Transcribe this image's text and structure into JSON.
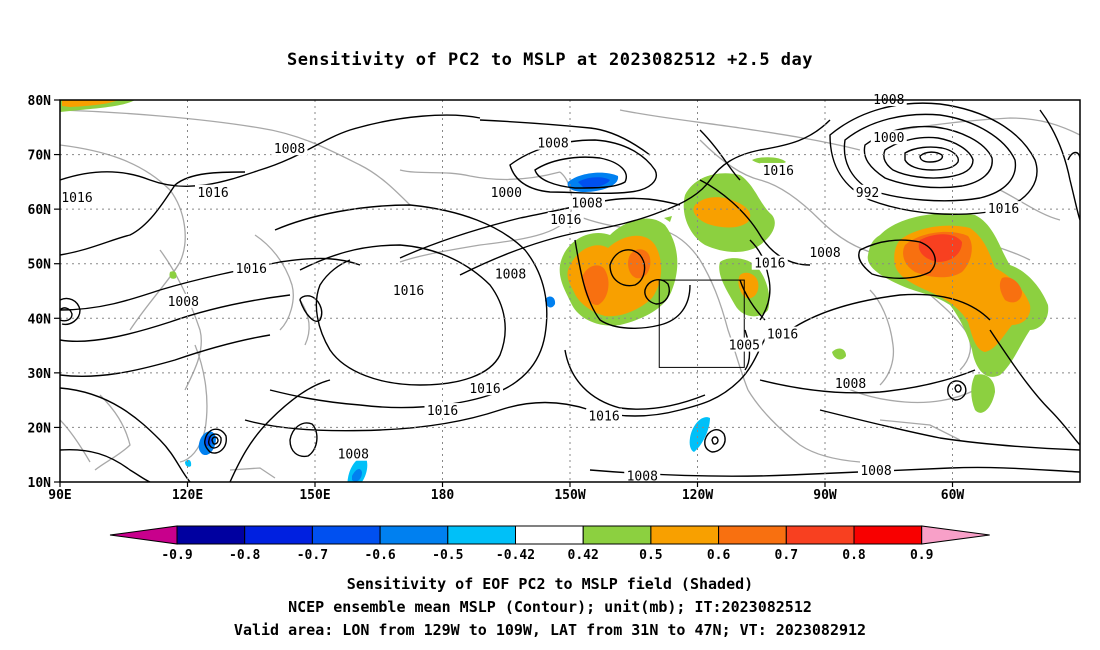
{
  "title": "Sensitivity of PC2 to MSLP at 2023082512 +2.5 day",
  "axes": {
    "lat_labels": [
      "80N",
      "70N",
      "60N",
      "50N",
      "40N",
      "30N",
      "20N",
      "10N"
    ],
    "lon_labels": [
      "90E",
      "120E",
      "150E",
      "180",
      "150W",
      "120W",
      "90W",
      "60W"
    ]
  },
  "contour_labels": [
    {
      "text": "1008",
      "lon": 144,
      "lat": 71
    },
    {
      "text": "1016",
      "lon": 94,
      "lat": 62
    },
    {
      "text": "1016",
      "lon": 126,
      "lat": 63
    },
    {
      "text": "1016",
      "lon": 135,
      "lat": 49
    },
    {
      "text": "1008",
      "lon": 119,
      "lat": 43
    },
    {
      "text": "1016",
      "lon": 172,
      "lat": 45
    },
    {
      "text": "1008",
      "lon": 196,
      "lat": 48
    },
    {
      "text": "1008",
      "lon": 206,
      "lat": 72
    },
    {
      "text": "1000",
      "lon": 195,
      "lat": 63
    },
    {
      "text": "1008",
      "lon": 214,
      "lat": 61
    },
    {
      "text": "1016",
      "lon": 209,
      "lat": 58
    },
    {
      "text": "1016",
      "lon": 259,
      "lat": 67
    },
    {
      "text": "1008",
      "lon": 285,
      "lat": 80
    },
    {
      "text": "1000",
      "lon": 285,
      "lat": 73
    },
    {
      "text": "992",
      "lon": 280,
      "lat": 63
    },
    {
      "text": "1016",
      "lon": 312,
      "lat": 60
    },
    {
      "text": "1008",
      "lon": 270,
      "lat": 52
    },
    {
      "text": "1016",
      "lon": 257,
      "lat": 50
    },
    {
      "text": "1005",
      "lon": 251,
      "lat": 35
    },
    {
      "text": "1016",
      "lon": 260,
      "lat": 37
    },
    {
      "text": "1008",
      "lon": 276,
      "lat": 28
    },
    {
      "text": "1016",
      "lon": 190,
      "lat": 27
    },
    {
      "text": "1016",
      "lon": 180,
      "lat": 23
    },
    {
      "text": "1016",
      "lon": 218,
      "lat": 22
    },
    {
      "text": "1008",
      "lon": 159,
      "lat": 15
    },
    {
      "text": "1008",
      "lon": 227,
      "lat": 11
    },
    {
      "text": "1008",
      "lon": 282,
      "lat": 12
    }
  ],
  "valid_area": {
    "lon_min": 231,
    "lon_max": 251,
    "lat_min": 31,
    "lat_max": 47
  },
  "colorbar": {
    "labels": [
      "-0.9",
      "-0.8",
      "-0.7",
      "-0.6",
      "-0.5",
      "-0.42",
      "0.42",
      "0.5",
      "0.6",
      "0.7",
      "0.8",
      "0.9"
    ],
    "colors": [
      "#0000a0",
      "#0020e0",
      "#0050f0",
      "#0080f0",
      "#00c0f8",
      "#ffffff",
      "#8cd040",
      "#f8a000",
      "#f87010",
      "#f84020",
      "#f80000"
    ],
    "low_color": "#c8008c",
    "high_color": "#f8a0c8"
  },
  "captions": {
    "line1": "Sensitivity of EOF PC2 to MSLP field (Shaded)",
    "line2": "NCEP ensemble mean MSLP (Contour); unit(mb); IT:2023082512",
    "line3": "Valid area: LON from 129W to 109W, LAT from 31N to 47N; VT: 2023082912"
  }
}
